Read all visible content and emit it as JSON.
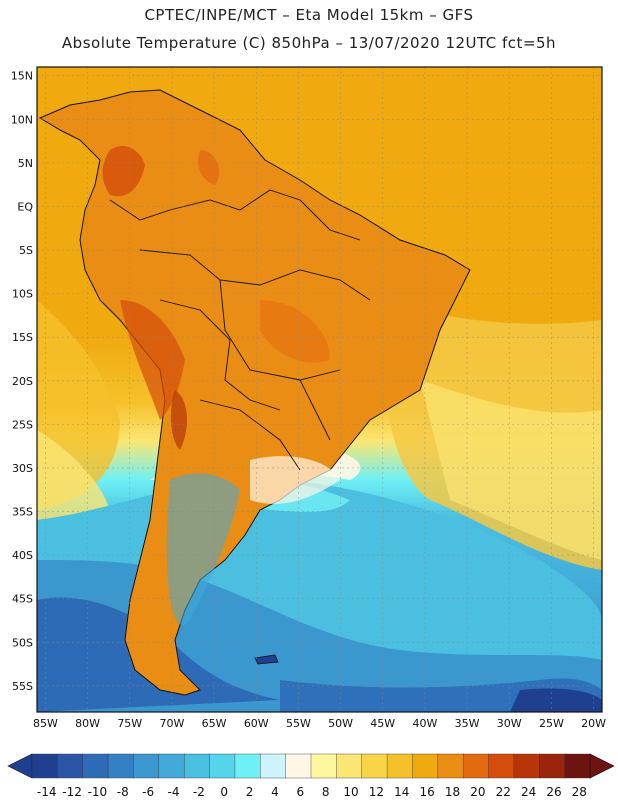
{
  "header": {
    "line1": "CPTEC/INPE/MCT –  Eta Model 15km – GFS",
    "line2": "Absolute Temperature (C) 850hPa – 13/07/2020 12UTC fct=5h"
  },
  "map": {
    "lat_labels": [
      "15N",
      "10N",
      "5N",
      "EQ",
      "5S",
      "10S",
      "15S",
      "20S",
      "25S",
      "30S",
      "35S",
      "40S",
      "45S",
      "50S",
      "55S"
    ],
    "lon_labels": [
      "85W",
      "80W",
      "75W",
      "70W",
      "65W",
      "60W",
      "55W",
      "50W",
      "45W",
      "40W",
      "35W",
      "30W",
      "25W",
      "20W"
    ],
    "extent": {
      "lon_min": -86,
      "lon_max": -19,
      "lat_min": -58,
      "lat_max": 16
    },
    "fields": {
      "tropics_color": "#f0aa10",
      "subtropics_color": "#f5c844",
      "cold_color": "#4ac0d8",
      "deep_cold_color": "#2e6db5"
    }
  },
  "colorbar": {
    "labels": [
      "-14",
      "-12",
      "-10",
      "-8",
      "-6",
      "-4",
      "-2",
      "0",
      "2",
      "4",
      "6",
      "8",
      "10",
      "12",
      "14",
      "16",
      "18",
      "20",
      "22",
      "24",
      "26",
      "28"
    ],
    "colors": [
      "#1f3f8f",
      "#2b55a6",
      "#2d6bb6",
      "#3381c4",
      "#3a98cf",
      "#41aad8",
      "#4abfe0",
      "#55d4ea",
      "#6ff0f5",
      "#cdf4fb",
      "#fff7e6",
      "#fff6a0",
      "#fbe673",
      "#f8d449",
      "#f5c12a",
      "#f0aa10",
      "#ea8d14",
      "#e36a10",
      "#d44d0b",
      "#b83409",
      "#9a240c",
      "#6d1410"
    ]
  }
}
